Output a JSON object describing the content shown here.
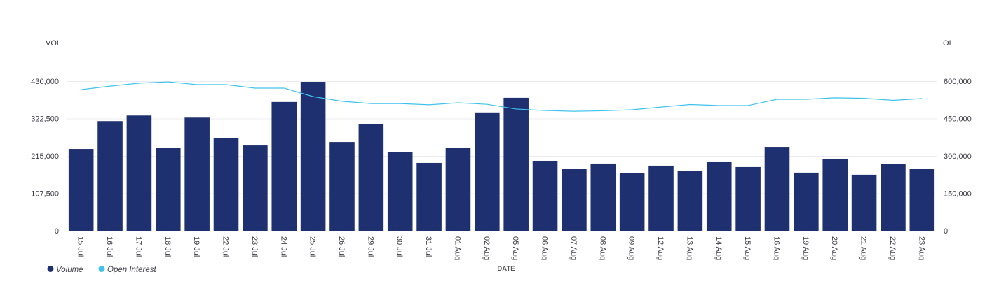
{
  "chart_data": {
    "type": "bar+line",
    "title": "",
    "xlabel": "DATE",
    "ylabel_left": "VOL",
    "ylabel_right": "OI",
    "categories": [
      "15 Jul",
      "16 Jul",
      "17 Jul",
      "18 Jul",
      "19 Jul",
      "22 Jul",
      "23 Jul",
      "24 Jul",
      "25 Jul",
      "26 Jul",
      "29 Jul",
      "30 Jul",
      "31 Jul",
      "01 Aug",
      "02 Aug",
      "05 Aug",
      "06 Aug",
      "07 Aug",
      "08 Aug",
      "09 Aug",
      "12 Aug",
      "13 Aug",
      "14 Aug",
      "15 Aug",
      "16 Aug",
      "19 Aug",
      "20 Aug",
      "21 Aug",
      "22 Aug",
      "23 Aug"
    ],
    "series": [
      {
        "name": "Volume",
        "type": "bar",
        "axis": "left",
        "color": "#1f3070",
        "values": [
          235000,
          315000,
          331000,
          239000,
          325000,
          267000,
          245000,
          370000,
          428000,
          255000,
          307000,
          227000,
          195000,
          239000,
          340000,
          382000,
          201000,
          177000,
          193000,
          165000,
          187000,
          171000,
          199000,
          183000,
          241000,
          167000,
          207000,
          161000,
          191000,
          177000
        ]
      },
      {
        "name": "Open Interest",
        "type": "line",
        "axis": "right",
        "color": "#3fc3ee",
        "values": [
          566000,
          580000,
          592000,
          597000,
          586000,
          586000,
          572000,
          572000,
          538000,
          519000,
          510000,
          510000,
          505000,
          513000,
          507000,
          488000,
          482000,
          479000,
          481000,
          485000,
          496000,
          506000,
          502000,
          502000,
          527000,
          527000,
          533000,
          531000,
          523000,
          530000
        ]
      }
    ],
    "left_axis": {
      "ylim": [
        0,
        430000
      ],
      "ticks": [
        "0",
        "107,500",
        "215,000",
        "322,500",
        "430,000"
      ],
      "tick_values": [
        0,
        107500,
        215000,
        322500,
        430000
      ]
    },
    "right_axis": {
      "ylim": [
        0,
        600000
      ],
      "ticks": [
        "0",
        "150,000",
        "300,000",
        "450,000",
        "600,000"
      ],
      "tick_values": [
        0,
        150000,
        300000,
        450000,
        600000
      ]
    },
    "grid": true,
    "legend": {
      "placement": "bottom-left",
      "entries": [
        "Volume",
        "Open Interest"
      ]
    }
  }
}
